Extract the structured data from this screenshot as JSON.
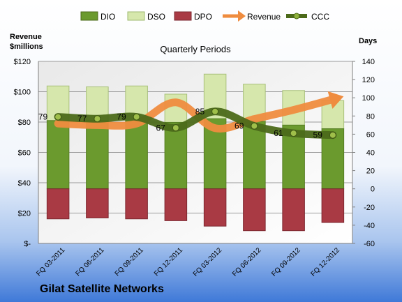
{
  "chart_data": {
    "type": "bar",
    "title": "Quarterly Periods",
    "company": "Gilat Satellite Networks",
    "left_axis_title": [
      "Revenue",
      "$millions"
    ],
    "right_axis_title": "Days",
    "left_axis": {
      "min": 0,
      "max": 120,
      "ticks": [
        "$-",
        "$20",
        "$40",
        "$60",
        "$80",
        "$100",
        "$120"
      ]
    },
    "right_axis": {
      "min": -60,
      "max": 140,
      "ticks": [
        "-60",
        "-40",
        "-20",
        "0",
        "20",
        "40",
        "60",
        "80",
        "100",
        "120",
        "140"
      ]
    },
    "categories": [
      "FQ 03-2011",
      "FQ 06-2011",
      "FQ 09-2011",
      "FQ 12-2011",
      "FQ 03-2012",
      "FQ 06-2012",
      "FQ 09-2012",
      "FQ 12-2012"
    ],
    "legend": [
      "DIO",
      "DSO",
      "DPO",
      "Revenue",
      "CCC"
    ],
    "series": [
      {
        "name": "DIO",
        "axis": "right",
        "values": [
          75,
          75,
          75,
          73,
          77,
          74,
          70,
          66
        ]
      },
      {
        "name": "DSO",
        "axis": "right",
        "values": [
          113,
          112,
          113,
          104,
          126,
          115,
          108,
          97
        ]
      },
      {
        "name": "DPO",
        "axis": "right",
        "values": [
          -33,
          -32,
          -33,
          -35,
          -41,
          -46,
          -46,
          -37
        ]
      },
      {
        "name": "Revenue",
        "axis": "left",
        "values": [
          79,
          78,
          79,
          93,
          76,
          82,
          88,
          95
        ]
      },
      {
        "name": "CCC",
        "axis": "right",
        "values": [
          79,
          77,
          79,
          67,
          85,
          69,
          61,
          59
        ]
      }
    ],
    "ccc_labels": [
      "79",
      "77",
      "79",
      "67",
      "85",
      "69",
      "61",
      "59"
    ],
    "colors": {
      "DIO": "#6b9a2e",
      "DSO": "#d6e7ac",
      "DPO": "#a93a44",
      "Revenue": "#ef8c3f",
      "CCC": "#4c6a1a",
      "background_top": "#ffffff",
      "background_bottom": "#3f79d8"
    }
  }
}
